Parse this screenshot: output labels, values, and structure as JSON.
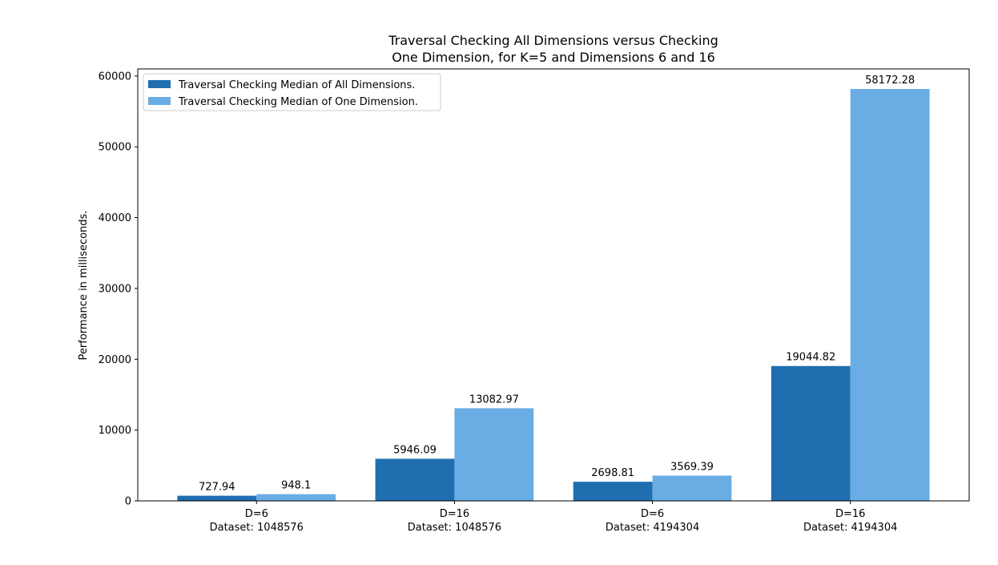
{
  "chart_data": {
    "type": "bar",
    "title_lines": [
      "Traversal Checking All Dimensions versus Checking",
      "One Dimension, for K=5 and Dimensions 6 and 16"
    ],
    "xlabel": "",
    "ylabel": "Performance in milliseconds.",
    "ylim": [
      0,
      61000
    ],
    "yticks": [
      0,
      10000,
      20000,
      30000,
      40000,
      50000,
      60000
    ],
    "grid": false,
    "legend_position": "top-left",
    "categories": [
      [
        "D=6",
        "Dataset: 1048576"
      ],
      [
        "D=16",
        "Dataset: 1048576"
      ],
      [
        "D=6",
        "Dataset: 4194304"
      ],
      [
        "D=16",
        "Dataset: 4194304"
      ]
    ],
    "series": [
      {
        "name": "Traversal Checking Median of All Dimensions.",
        "color": "#1f6eb0",
        "values": [
          727.94,
          5946.09,
          2698.81,
          19044.82
        ],
        "labels": [
          "727.94",
          "5946.09",
          "2698.81",
          "19044.82"
        ]
      },
      {
        "name": "Traversal Checking Median of One Dimension.",
        "color": "#6aade4",
        "values": [
          948.1,
          13082.97,
          3569.39,
          58172.28
        ],
        "labels": [
          "948.1",
          "13082.97",
          "3569.39",
          "58172.28"
        ]
      }
    ]
  }
}
